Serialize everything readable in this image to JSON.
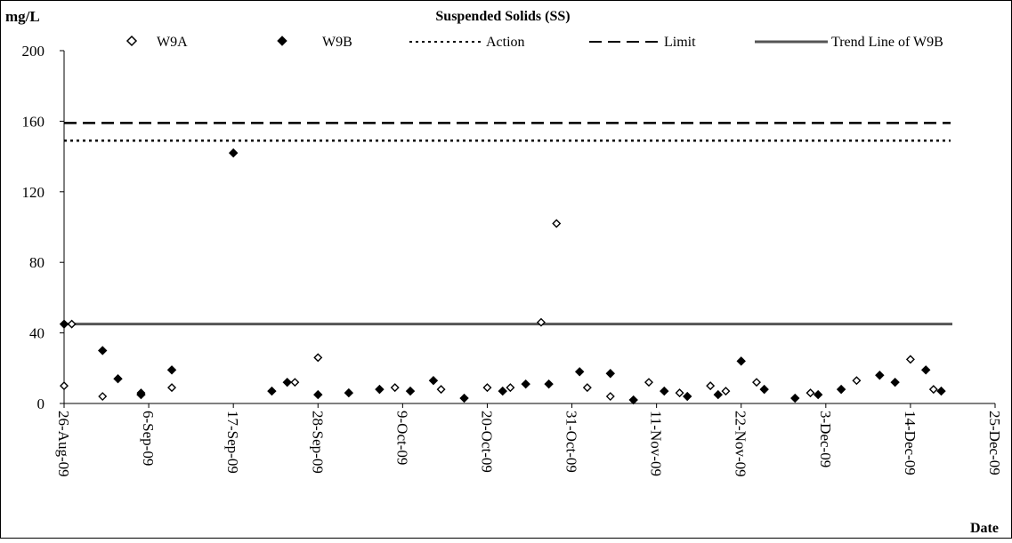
{
  "chart_data": {
    "type": "scatter",
    "title": "Suspended Solids (SS)",
    "ylabel": "mg/L",
    "xlabel": "Date",
    "ylim": [
      0,
      200
    ],
    "xlim": [
      "2009-08-26",
      "2009-12-25"
    ],
    "yticks": [
      "0",
      "40",
      "80",
      "120",
      "160",
      "200"
    ],
    "xticks": [
      "26-Aug-09",
      "6-Sep-09",
      "17-Sep-09",
      "28-Sep-09",
      "9-Oct-09",
      "20-Oct-09",
      "31-Oct-09",
      "11-Nov-09",
      "22-Nov-09",
      "3-Dec-09",
      "14-Dec-09",
      "25-Dec-09"
    ],
    "grid": false,
    "legend_position": "top",
    "legend": {
      "w9a": "W9A",
      "w9b": "W9B",
      "action": "Action",
      "limit": "Limit",
      "trend": "Trend Line of W9B"
    },
    "series": [
      {
        "name": "W9A",
        "marker": "open-diamond",
        "points": [
          {
            "x": "2009-08-26",
            "y": 10
          },
          {
            "x": "2009-08-27",
            "y": 45
          },
          {
            "x": "2009-08-31",
            "y": 4
          },
          {
            "x": "2009-09-05",
            "y": 6
          },
          {
            "x": "2009-09-09",
            "y": 9
          },
          {
            "x": "2009-09-25",
            "y": 12
          },
          {
            "x": "2009-09-28",
            "y": 26
          },
          {
            "x": "2009-10-08",
            "y": 9
          },
          {
            "x": "2009-10-14",
            "y": 8
          },
          {
            "x": "2009-10-20",
            "y": 9
          },
          {
            "x": "2009-10-23",
            "y": 9
          },
          {
            "x": "2009-10-27",
            "y": 46
          },
          {
            "x": "2009-10-29",
            "y": 102
          },
          {
            "x": "2009-11-02",
            "y": 9
          },
          {
            "x": "2009-11-05",
            "y": 4
          },
          {
            "x": "2009-11-10",
            "y": 12
          },
          {
            "x": "2009-11-14",
            "y": 6
          },
          {
            "x": "2009-11-18",
            "y": 10
          },
          {
            "x": "2009-11-20",
            "y": 7
          },
          {
            "x": "2009-11-24",
            "y": 12
          },
          {
            "x": "2009-12-01",
            "y": 6
          },
          {
            "x": "2009-12-07",
            "y": 13
          },
          {
            "x": "2009-12-14",
            "y": 25
          },
          {
            "x": "2009-12-17",
            "y": 8
          }
        ]
      },
      {
        "name": "W9B",
        "marker": "filled-diamond",
        "points": [
          {
            "x": "2009-08-26",
            "y": 45
          },
          {
            "x": "2009-08-31",
            "y": 30
          },
          {
            "x": "2009-09-02",
            "y": 14
          },
          {
            "x": "2009-09-05",
            "y": 5
          },
          {
            "x": "2009-09-09",
            "y": 19
          },
          {
            "x": "2009-09-17",
            "y": 142
          },
          {
            "x": "2009-09-22",
            "y": 7
          },
          {
            "x": "2009-09-24",
            "y": 12
          },
          {
            "x": "2009-09-28",
            "y": 5
          },
          {
            "x": "2009-10-02",
            "y": 6
          },
          {
            "x": "2009-10-06",
            "y": 8
          },
          {
            "x": "2009-10-10",
            "y": 7
          },
          {
            "x": "2009-10-13",
            "y": 13
          },
          {
            "x": "2009-10-17",
            "y": 3
          },
          {
            "x": "2009-10-22",
            "y": 7
          },
          {
            "x": "2009-10-25",
            "y": 11
          },
          {
            "x": "2009-10-28",
            "y": 11
          },
          {
            "x": "2009-11-01",
            "y": 18
          },
          {
            "x": "2009-11-05",
            "y": 17
          },
          {
            "x": "2009-11-08",
            "y": 2
          },
          {
            "x": "2009-11-12",
            "y": 7
          },
          {
            "x": "2009-11-15",
            "y": 4
          },
          {
            "x": "2009-11-19",
            "y": 5
          },
          {
            "x": "2009-11-22",
            "y": 24
          },
          {
            "x": "2009-11-25",
            "y": 8
          },
          {
            "x": "2009-11-29",
            "y": 3
          },
          {
            "x": "2009-12-02",
            "y": 5
          },
          {
            "x": "2009-12-05",
            "y": 8
          },
          {
            "x": "2009-12-10",
            "y": 16
          },
          {
            "x": "2009-12-12",
            "y": 12
          },
          {
            "x": "2009-12-16",
            "y": 19
          },
          {
            "x": "2009-12-18",
            "y": 7
          }
        ]
      }
    ],
    "reference_lines": [
      {
        "name": "Action",
        "y": 149,
        "style": "dotted"
      },
      {
        "name": "Limit",
        "y": 159,
        "style": "dashed"
      }
    ],
    "trend_line": {
      "name": "Trend Line of W9B",
      "y_start": 45,
      "y_end": 45
    }
  }
}
